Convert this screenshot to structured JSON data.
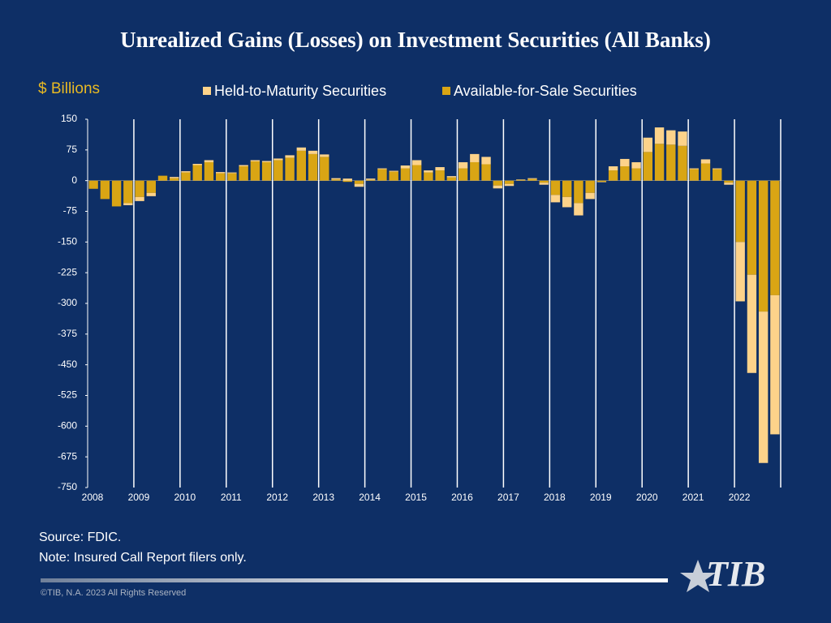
{
  "chart_data": {
    "type": "bar",
    "stacked": true,
    "title": "Unrealized Gains (Losses) on Investment Securities (All Banks)",
    "y_label": "$ Billions",
    "categories": [
      "2008",
      null,
      null,
      null,
      "2009",
      null,
      null,
      null,
      "2010",
      null,
      null,
      null,
      "2011",
      null,
      null,
      null,
      "2012",
      null,
      null,
      null,
      "2013",
      null,
      null,
      null,
      "2014",
      null,
      null,
      null,
      "2015",
      null,
      null,
      null,
      "2016",
      null,
      null,
      null,
      "2017",
      null,
      null,
      null,
      "2018",
      null,
      null,
      null,
      "2019",
      null,
      null,
      null,
      "2020",
      null,
      null,
      null,
      "2021",
      null,
      null,
      null,
      "2022",
      null,
      null,
      null
    ],
    "series": [
      {
        "name": "Held-to-Maturity Securities",
        "color": "#fdd38a",
        "values": [
          0,
          0,
          0,
          -5,
          -10,
          -8,
          0,
          3,
          3,
          3,
          5,
          3,
          2,
          3,
          3,
          3,
          4,
          6,
          8,
          8,
          6,
          3,
          5,
          -7,
          3,
          2,
          2,
          7,
          12,
          5,
          8,
          3,
          15,
          20,
          18,
          -7,
          -5,
          1,
          2,
          -5,
          -18,
          -25,
          -30,
          -15,
          -1,
          10,
          18,
          15,
          35,
          40,
          35,
          35,
          2,
          10,
          2,
          -5,
          -145,
          -240,
          -370,
          -340
        ]
      },
      {
        "name": "Available-for-Sale Securities",
        "color": "#d9a514",
        "values": [
          -20,
          -45,
          -63,
          -55,
          -40,
          -30,
          12,
          6,
          20,
          38,
          45,
          18,
          18,
          35,
          47,
          45,
          50,
          56,
          73,
          65,
          58,
          3,
          -3,
          -8,
          2,
          28,
          22,
          30,
          38,
          20,
          25,
          8,
          30,
          45,
          40,
          -12,
          -8,
          2,
          4,
          -5,
          -35,
          -40,
          -55,
          -30,
          -3,
          25,
          35,
          30,
          70,
          90,
          88,
          85,
          28,
          42,
          28,
          -5,
          -150,
          -230,
          -320,
          -280
        ]
      }
    ],
    "ylim": [
      -750,
      150
    ],
    "yticks": [
      150,
      75,
      0,
      -75,
      -150,
      -225,
      -300,
      -375,
      -450,
      -525,
      -600,
      -675,
      -750
    ],
    "source": "Source: FDIC.",
    "note": "Note: Insured Call Report filers only.",
    "footer": "©TIB, N.A. 2023  All Rights Reserved",
    "logo": "TIB"
  }
}
